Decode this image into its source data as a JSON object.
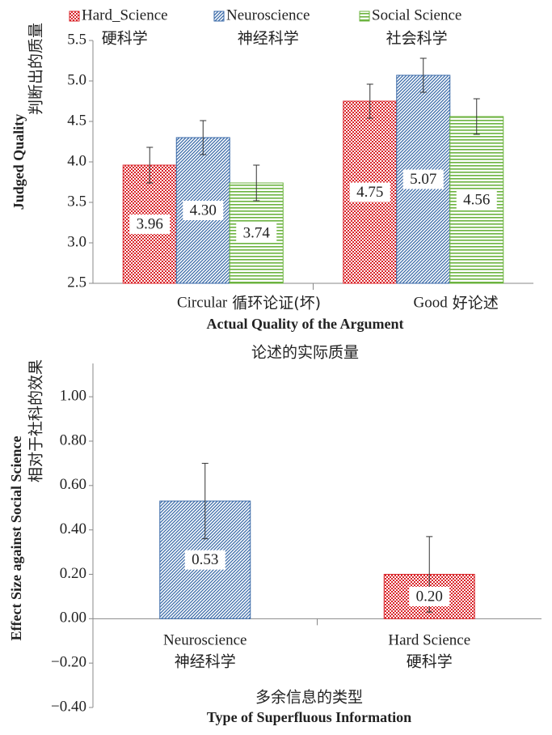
{
  "chart_data": [
    {
      "type": "bar",
      "y_label": "Judged Quality",
      "y_label_zh": "判断出的质量",
      "x_label": "Actual Quality of the Argument",
      "x_label_zh": "论述的实际质量",
      "categories": [
        "Circular",
        "Good"
      ],
      "categories_zh": [
        "循环论证(坏)",
        "好论述"
      ],
      "series": [
        {
          "name": "Hard_Science",
          "name_zh": "硬科学",
          "color": "#d9262b",
          "pattern": "checker",
          "values": [
            3.96,
            4.75
          ],
          "value_labels": [
            "3.96",
            "4.75"
          ],
          "errors": [
            0.22,
            0.21
          ]
        },
        {
          "name": "Neuroscience",
          "name_zh": "神经科学",
          "color": "#3a6aa8",
          "pattern": "diagonal",
          "values": [
            4.3,
            5.07
          ],
          "value_labels": [
            "4.30",
            "5.07"
          ],
          "errors": [
            0.21,
            0.21
          ]
        },
        {
          "name": "Social Science",
          "name_zh": "社会科学",
          "color": "#6cb33f",
          "pattern": "horizontal",
          "values": [
            3.74,
            4.56
          ],
          "value_labels": [
            "3.74",
            "4.56"
          ],
          "errors": [
            0.22,
            0.22
          ]
        }
      ],
      "ylim": [
        2.5,
        5.5
      ],
      "yticks": [
        2.5,
        {
          "value": 3,
          "label": "3.0"
        },
        3.5,
        {
          "value": 4,
          "label": "4.0"
        },
        4.5,
        {
          "value": 5,
          "label": "5.0"
        },
        5.5
      ],
      "annotation_color": "#e0302e",
      "legend": "top"
    },
    {
      "type": "bar",
      "y_label": "Effect Size against  Social Science",
      "y_label_zh": "相对于社科的效果",
      "x_label": "Type of Superfluous Information",
      "x_label_zh": "多余信息的类型",
      "categories": [
        "Neuroscience",
        "Hard Science"
      ],
      "categories_zh": [
        "神经科学",
        "硬科学"
      ],
      "values": [
        0.53,
        0.2
      ],
      "value_labels": [
        "0.53",
        "0.20"
      ],
      "errors": [
        0.17,
        0.17
      ],
      "colors": [
        "#3a6aa8",
        "#d9262b"
      ],
      "patterns": [
        "diagonal",
        "checker"
      ],
      "ylim": [
        -0.4,
        1.15
      ],
      "yticks": [
        {
          "value": -0.4,
          "label": "−0.40"
        },
        {
          "value": -0.2,
          "label": "−0.20"
        },
        {
          "value": 0,
          "label": "0.00"
        },
        {
          "value": 0.2,
          "label": "0.20"
        },
        {
          "value": 0.4,
          "label": "0.40"
        },
        {
          "value": 0.6,
          "label": "0.60"
        },
        {
          "value": 0.8,
          "label": "0.80"
        },
        {
          "value": 1,
          "label": "1.00"
        }
      ],
      "annotation_color": "#e0302e"
    }
  ]
}
